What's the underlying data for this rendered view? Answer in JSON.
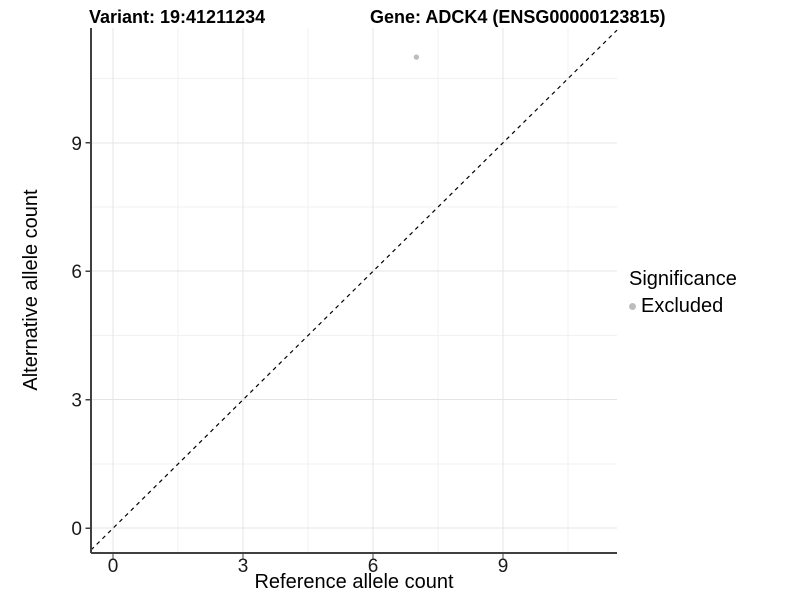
{
  "chart_data": {
    "type": "scatter",
    "title_left": "Variant: 19:41211234",
    "title_right": "Gene: ADCK4 (ENSG00000123815)",
    "xlabel": "Reference allele count",
    "ylabel": "Alternative allele count",
    "xlim": [
      -0.51,
      11.63
    ],
    "ylim": [
      -0.58,
      11.68
    ],
    "xticks": [
      0,
      3,
      6,
      9
    ],
    "yticks": [
      0,
      3,
      6,
      9
    ],
    "minor_xticks": [
      1.5,
      4.5,
      7.5,
      10.5
    ],
    "minor_yticks": [
      1.5,
      4.5,
      7.5,
      10.5
    ],
    "grid": true,
    "series": [
      {
        "name": "Excluded",
        "color": "#bdbdbd",
        "points": [
          [
            7,
            11
          ]
        ]
      }
    ],
    "reference_line": {
      "type": "identity",
      "style": "dashed",
      "color": "#000000"
    },
    "legend": {
      "title": "Significance",
      "position": "right",
      "entries": [
        {
          "label": "Excluded",
          "color": "#bdbdbd"
        }
      ]
    },
    "colors": {
      "background": "#ffffff",
      "axis_line": "#404040",
      "major_grid": "#e4e4e4",
      "minor_grid": "#f1f1f1",
      "tick_text": "#1a1a1a"
    }
  }
}
